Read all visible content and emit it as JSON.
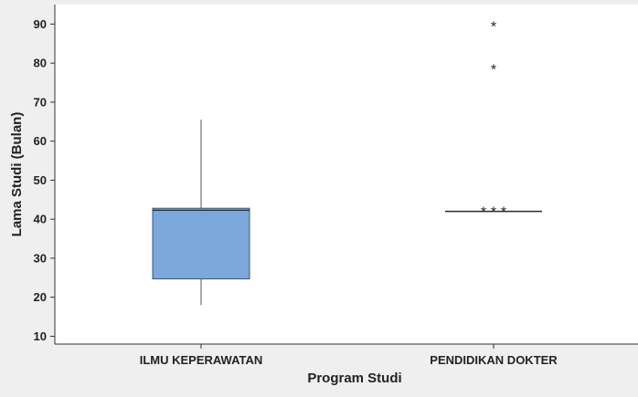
{
  "chart_data": {
    "type": "box",
    "title": "",
    "xlabel": "Program Studi",
    "ylabel": "Lama Studi (Bulan)",
    "ylim": [
      8,
      95
    ],
    "yticks": [
      10,
      20,
      30,
      40,
      50,
      60,
      70,
      80,
      90
    ],
    "grid": false,
    "categories": [
      "ILMU KEPERAWATAN",
      "PENDIDIKAN DOKTER"
    ],
    "boxes": [
      {
        "category": "ILMU KEPERAWATAN",
        "whisker_low": 18,
        "q1": 24.7,
        "median": 42.3,
        "q3": 42.8,
        "whisker_high": 65.5,
        "outliers": []
      },
      {
        "category": "PENDIDIKAN DOKTER",
        "whisker_low": 42,
        "q1": 42,
        "median": 42,
        "q3": 42,
        "whisker_high": 42,
        "outliers": [
          90,
          79,
          42.5,
          42.5,
          42.5
        ]
      }
    ],
    "colors": {
      "box_fill": "#7ba7da",
      "box_stroke": "#3f556e",
      "whisker": "#555555",
      "background": "#efefef",
      "plot_background": "#ffffff",
      "axis": "#333333"
    }
  }
}
